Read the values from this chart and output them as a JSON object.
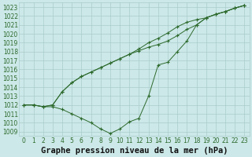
{
  "bg_color": "#cce8e8",
  "grid_color": "#aacccc",
  "line_color": "#2d6a2d",
  "marker_color": "#2d6a2d",
  "title": "Graphe pression niveau de la mer (hPa)",
  "xlim": [
    -0.5,
    23.5
  ],
  "ylim": [
    1008.5,
    1023.5
  ],
  "xticks": [
    0,
    1,
    2,
    3,
    4,
    5,
    6,
    7,
    8,
    9,
    10,
    11,
    12,
    13,
    14,
    15,
    16,
    17,
    18,
    19,
    20,
    21,
    22,
    23
  ],
  "yticks": [
    1009,
    1010,
    1011,
    1012,
    1013,
    1014,
    1015,
    1016,
    1017,
    1018,
    1019,
    1020,
    1021,
    1022,
    1023
  ],
  "series": [
    [
      1012.0,
      1012.0,
      1011.8,
      1011.8,
      1011.5,
      1011.0,
      1010.5,
      1010.0,
      1009.3,
      1008.8,
      1009.3,
      1010.1,
      1010.5,
      1013.0,
      1016.5,
      1016.8,
      1018.0,
      1019.2,
      1021.0,
      1021.8,
      1022.2,
      1022.5,
      1022.9,
      1023.2
    ],
    [
      1012.0,
      1012.0,
      1011.8,
      1012.0,
      1013.5,
      1014.5,
      1015.2,
      1015.7,
      1016.2,
      1016.7,
      1017.2,
      1017.7,
      1018.1,
      1018.5,
      1018.8,
      1019.2,
      1019.8,
      1020.5,
      1021.0,
      1021.8,
      1022.2,
      1022.5,
      1022.9,
      1023.2
    ],
    [
      1012.0,
      1012.0,
      1011.8,
      1012.0,
      1013.5,
      1014.5,
      1015.2,
      1015.7,
      1016.2,
      1016.7,
      1017.2,
      1017.7,
      1018.3,
      1019.0,
      1019.5,
      1020.1,
      1020.8,
      1021.3,
      1021.6,
      1021.8,
      1022.2,
      1022.5,
      1022.9,
      1023.2
    ]
  ],
  "title_fontsize": 7.5,
  "tick_fontsize": 5.5
}
